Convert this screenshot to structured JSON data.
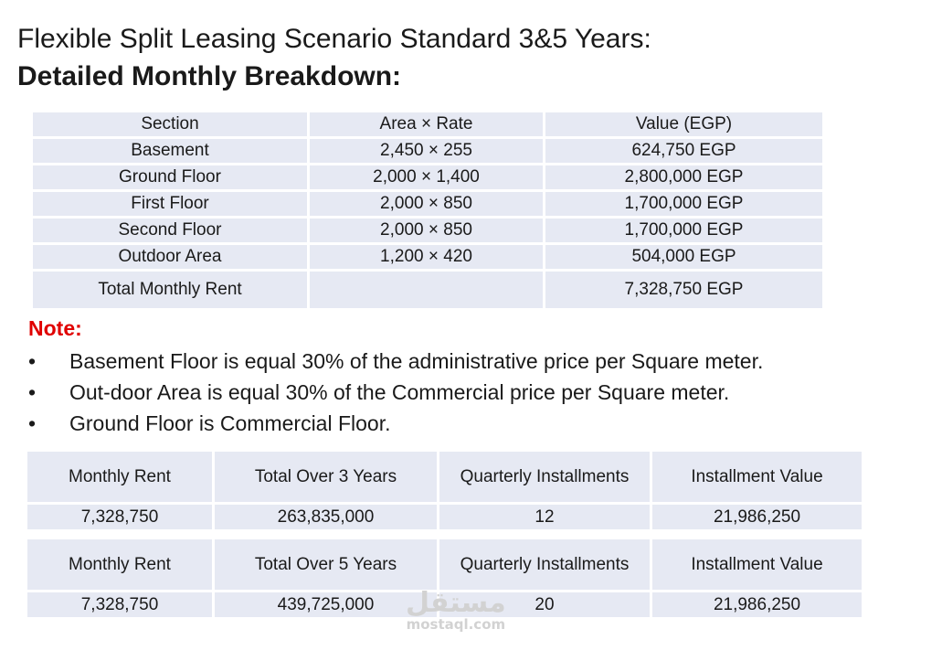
{
  "heading": {
    "line1": "Flexible Split Leasing Scenario Standard 3&5 Years:",
    "line2": "Detailed Monthly Breakdown:"
  },
  "breakdown": {
    "headers": [
      "Section",
      "Area × Rate",
      "Value (EGP)"
    ],
    "rows": [
      [
        "Basement",
        "2,450 × 255",
        "624,750 EGP"
      ],
      [
        "Ground Floor",
        "2,000 × 1,400",
        "2,800,000 EGP"
      ],
      [
        "First Floor",
        "2,000 × 850",
        "1,700,000 EGP"
      ],
      [
        "Second Floor",
        "2,000 × 850",
        "1,700,000 EGP"
      ],
      [
        "Outdoor Area",
        "1,200 × 420",
        "504,000 EGP"
      ]
    ],
    "total": [
      "Total Monthly Rent",
      "",
      "7,328,750 EGP"
    ]
  },
  "note": {
    "title": "Note:",
    "bullet": "•",
    "items": [
      "Basement Floor is equal 30% of the administrative price per Square meter.",
      "Out-door Area is equal 30% of the Commercial price per Square meter.",
      "Ground Floor is Commercial Floor."
    ]
  },
  "installments": [
    {
      "headers": [
        "Monthly Rent",
        "Total Over 3 Years",
        "Quarterly Installments",
        "Installment Value"
      ],
      "values": [
        "7,328,750",
        "263,835,000",
        "12",
        "21,986,250"
      ]
    },
    {
      "headers": [
        "Monthly Rent",
        "Total Over 5 Years",
        "Quarterly Installments",
        "Installment Value"
      ],
      "values": [
        "7,328,750",
        "439,725,000",
        "20",
        "21,986,250"
      ]
    }
  ],
  "watermark": {
    "arabic": "مستقل",
    "latin": "mostaql.com"
  },
  "colors": {
    "cell_bg": "#e6e9f3",
    "note_red": "#e00000",
    "text": "#1a1a1a"
  }
}
